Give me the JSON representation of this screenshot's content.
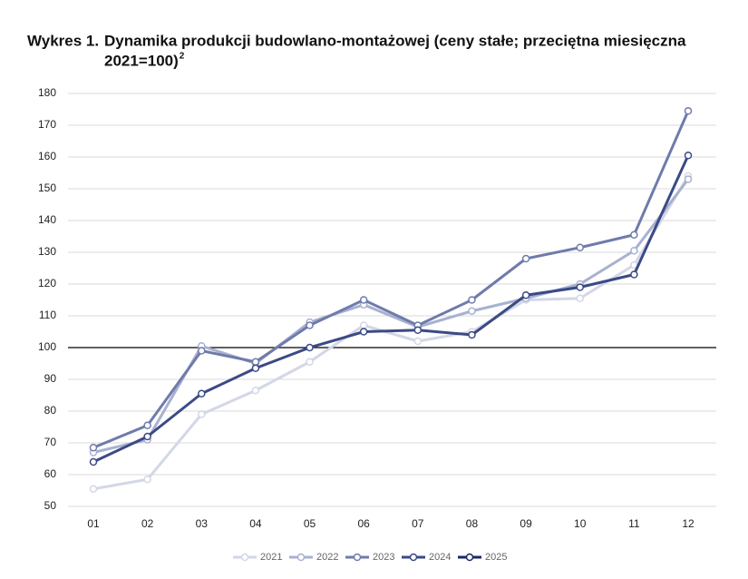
{
  "chart_data": {
    "type": "line",
    "title_label": "Wykres 1.",
    "title": "Dynamika produkcji budowlano-montażowej (ceny stałe; przeciętna miesięczna",
    "title_line2": "2021=100)",
    "title_note": "2",
    "categories": [
      "01",
      "02",
      "03",
      "04",
      "05",
      "06",
      "07",
      "08",
      "09",
      "10",
      "11",
      "12"
    ],
    "ylim": [
      50,
      180
    ],
    "yticks": [
      50,
      60,
      70,
      80,
      90,
      100,
      110,
      120,
      130,
      140,
      150,
      160,
      170,
      180
    ],
    "reference_line": 100,
    "grid": true,
    "legend": "bottom",
    "series": [
      {
        "name": "2021",
        "color": "#d3d7e6",
        "values": [
          55.5,
          58.5,
          79,
          86.5,
          95.5,
          107,
          102,
          105,
          115,
          115.5,
          126,
          154
        ]
      },
      {
        "name": "2022",
        "color": "#a8b1d0",
        "values": [
          67,
          71,
          100.5,
          95,
          108,
          113.5,
          106.5,
          111.5,
          115.5,
          120,
          130.5,
          153
        ]
      },
      {
        "name": "2023",
        "color": "#6f7bab",
        "values": [
          68.5,
          75.5,
          99,
          95.5,
          107,
          115,
          107,
          115,
          128,
          131.5,
          135.5,
          174.5
        ]
      },
      {
        "name": "2024",
        "color": "#3b4a86",
        "values": [
          64,
          72,
          85.5,
          93.5,
          100,
          105,
          105.5,
          104,
          116.5,
          119,
          123,
          160.5
        ]
      },
      {
        "name": "2025",
        "color": "#1b2866",
        "values": [
          null,
          null,
          null,
          null,
          null,
          null,
          null,
          null,
          null,
          null,
          null,
          null
        ]
      }
    ]
  }
}
